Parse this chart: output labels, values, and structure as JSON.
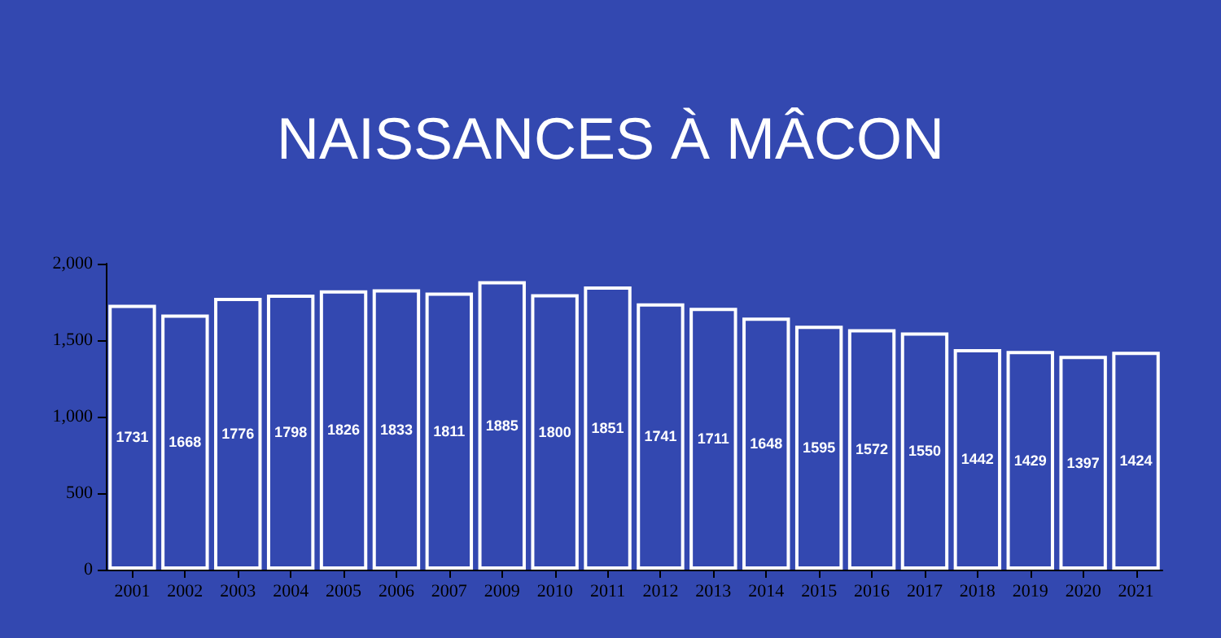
{
  "chart_data": {
    "type": "bar",
    "title": "NAISSANCES À MÂCON",
    "categories": [
      "2001",
      "2002",
      "2003",
      "2004",
      "2005",
      "2006",
      "2007",
      "2009",
      "2010",
      "2011",
      "2012",
      "2013",
      "2014",
      "2015",
      "2016",
      "2017",
      "2018",
      "2019",
      "2020",
      "2021"
    ],
    "values": [
      1731,
      1668,
      1776,
      1798,
      1826,
      1833,
      1811,
      1885,
      1800,
      1851,
      1741,
      1711,
      1648,
      1595,
      1572,
      1550,
      1442,
      1429,
      1397,
      1424
    ],
    "color": "#3348b0",
    "ylim": [
      0,
      2000
    ],
    "yticks": [
      {
        "value": 0,
        "label": "0"
      },
      {
        "value": 500,
        "label": "500"
      },
      {
        "value": 1000,
        "label": "1,000"
      },
      {
        "value": 1500,
        "label": "1,500"
      },
      {
        "value": 2000,
        "label": "2,000"
      }
    ],
    "grid": false,
    "data_labels": true
  }
}
